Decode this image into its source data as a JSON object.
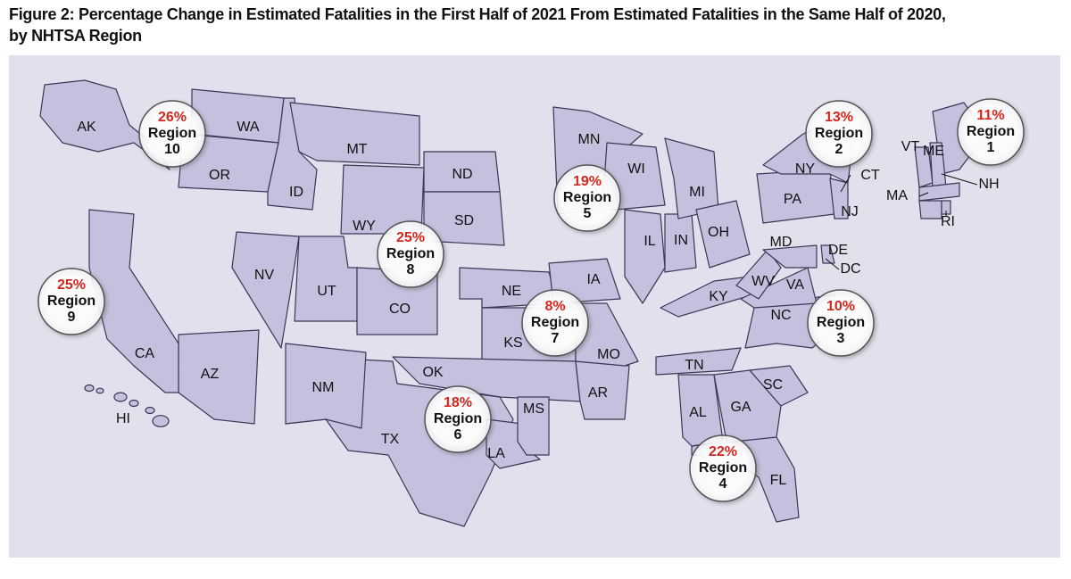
{
  "title": "Figure 2: Percentage Change in Estimated Fatalities in the First Half of 2021 From Estimated Fatalities in the Same Half of 2020, by NHTSA Region",
  "regions": [
    {
      "change": "11%",
      "label": "Region",
      "number": "1"
    },
    {
      "change": "13%",
      "label": "Region",
      "number": "2"
    },
    {
      "change": "10%",
      "label": "Region",
      "number": "3"
    },
    {
      "change": "22%",
      "label": "Region",
      "number": "4"
    },
    {
      "change": "19%",
      "label": "Region",
      "number": "5"
    },
    {
      "change": "18%",
      "label": "Region",
      "number": "6"
    },
    {
      "change": "8%",
      "label": "Region",
      "number": "7"
    },
    {
      "change": "25%",
      "label": "Region",
      "number": "8"
    },
    {
      "change": "25%",
      "label": "Region",
      "number": "9"
    },
    {
      "change": "26%",
      "label": "Region",
      "number": "10"
    }
  ],
  "states": [
    "AK",
    "HI",
    "WA",
    "OR",
    "ID",
    "MT",
    "WY",
    "ND",
    "SD",
    "NE",
    "KS",
    "OK",
    "TX",
    "NM",
    "AZ",
    "CA",
    "NV",
    "UT",
    "CO",
    "LA",
    "AR",
    "MS",
    "MO",
    "IA",
    "MN",
    "WI",
    "IL",
    "IN",
    "MI",
    "OH",
    "KY",
    "TN",
    "AL",
    "GA",
    "FL",
    "SC",
    "NC",
    "VA",
    "WV",
    "MD",
    "DE",
    "DC",
    "PA",
    "NY",
    "NJ",
    "ME",
    "VT",
    "NH",
    "MA",
    "CT",
    "RI"
  ]
}
